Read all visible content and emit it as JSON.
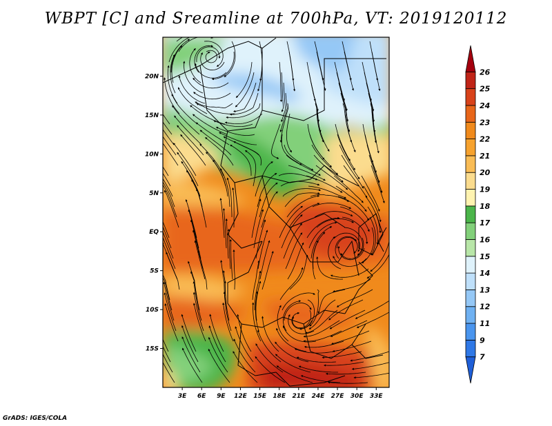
{
  "title": "WBPT [C] and Sreamline at 700hPa, VT: 2019120112",
  "footer": "GrADS: IGES/COLA",
  "map": {
    "lat_labels": [
      "20N",
      "15N",
      "10N",
      "5N",
      "EQ",
      "5S",
      "10S",
      "15S"
    ],
    "lat_values": [
      20,
      15,
      10,
      5,
      0,
      -5,
      -10,
      -15
    ],
    "lon_labels": [
      "3E",
      "6E",
      "9E",
      "12E",
      "15E",
      "18E",
      "21E",
      "24E",
      "27E",
      "30E",
      "33E"
    ],
    "lon_values": [
      3,
      6,
      9,
      12,
      15,
      18,
      21,
      24,
      27,
      30,
      33
    ],
    "lon_range": [
      0,
      35
    ],
    "lat_range": [
      -20,
      25
    ],
    "cyclone_centers": [
      {
        "lon": 21,
        "lat": -11.5
      },
      {
        "lon": 29,
        "lat": -2
      },
      {
        "lon": 7.5,
        "lat": 22.5
      }
    ]
  },
  "colorbar": {
    "levels": [
      "7",
      "9",
      "11",
      "12",
      "13",
      "14",
      "15",
      "16",
      "17",
      "18",
      "19",
      "20",
      "21",
      "22",
      "23",
      "24",
      "25",
      "26"
    ],
    "colors": [
      "#1f5fd8",
      "#2f78e6",
      "#4a95ee",
      "#6fb1f2",
      "#95c8f6",
      "#bfe0fa",
      "#dff2fb",
      "#b8e6a8",
      "#82d07a",
      "#4bb54a",
      "#fff3b0",
      "#fbdc8e",
      "#f9bc55",
      "#f6a22e",
      "#f08a1c",
      "#e8661a",
      "#d8421a",
      "#c02417",
      "#a4000e"
    ]
  }
}
